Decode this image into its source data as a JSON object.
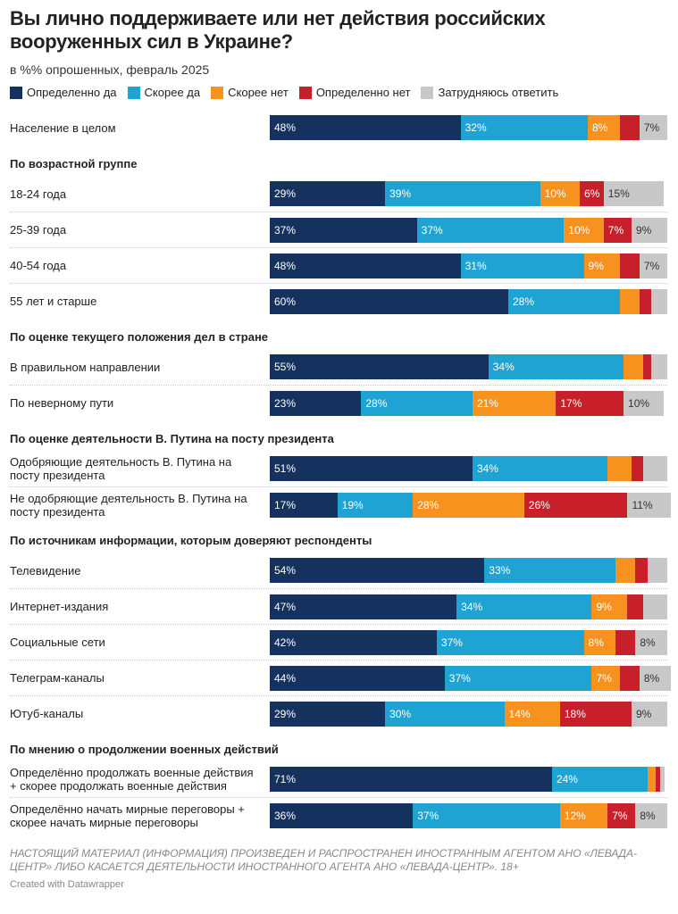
{
  "chart_data": {
    "type": "stacked-bar",
    "title": "Вы лично поддерживаете или нет действия российских вооруженных сил в Украине?",
    "subtitle": "в %% опрошенных, февраль 2025",
    "categories": [
      "Население в целом",
      "По возрастной группе",
      "18-24 года",
      "25-39 года",
      "40-54 года",
      "55 лет и старше",
      "По оценке текущего положения дел в стране",
      "В правильном направлении",
      "По неверному пути",
      "По оценке деятельности В. Путина на посту президента",
      "Одобряющие деятельность В. Путина на посту президента",
      "Не одобряющие деятельность В. Путина на посту президента",
      "По источникам информации, которым доверяют респонденты",
      "Телевидение",
      "Интернет-издания",
      "Социальные сети",
      "Телеграм-каналы",
      "Ютуб-каналы",
      "По мнению о продолжении военных действий",
      "Определённо продолжать военные действия + скорее продолжать военные действия",
      "Определённо начать мирные переговоры + скорее начать мирные переговоры"
    ],
    "xlim": [
      0,
      100
    ],
    "series": [
      {
        "name": "Определенно да",
        "color": "#15325f",
        "values": [
          48,
          null,
          29,
          37,
          48,
          60,
          null,
          55,
          23,
          null,
          51,
          17,
          null,
          54,
          47,
          42,
          44,
          29,
          null,
          71,
          36
        ],
        "value_labels": [
          "48%",
          null,
          "29%",
          "37%",
          "48%",
          "60%",
          null,
          "55%",
          "23%",
          null,
          "51%",
          "17%",
          null,
          "54%",
          "47%",
          "42%",
          "44%",
          "29%",
          null,
          "71%",
          "36%"
        ]
      },
      {
        "name": "Скорее да",
        "color": "#1fa3d3",
        "values": [
          32,
          null,
          39,
          37,
          31,
          28,
          null,
          34,
          28,
          null,
          34,
          19,
          null,
          33,
          34,
          37,
          37,
          30,
          null,
          24,
          37
        ],
        "value_labels": [
          "32%",
          null,
          "39%",
          "37%",
          "31%",
          "28%",
          null,
          "34%",
          "28%",
          null,
          "34%",
          "19%",
          null,
          "33%",
          "34%",
          "37%",
          "37%",
          "30%",
          null,
          "24%",
          "37%"
        ]
      },
      {
        "name": "Скорее нет",
        "color": "#f7921e",
        "values": [
          8,
          null,
          10,
          10,
          9,
          5,
          null,
          5,
          21,
          null,
          6,
          28,
          null,
          5,
          9,
          8,
          7,
          14,
          null,
          2,
          12
        ],
        "value_labels": [
          "8%",
          null,
          "10%",
          "10%",
          "9%",
          null,
          null,
          null,
          "21%",
          null,
          null,
          "28%",
          null,
          null,
          "9%",
          "8%",
          "7%",
          "14%",
          null,
          null,
          "12%"
        ]
      },
      {
        "name": "Определенно нет",
        "color": "#c8202a",
        "values": [
          5,
          null,
          6,
          7,
          5,
          3,
          null,
          2,
          17,
          null,
          3,
          26,
          null,
          3,
          4,
          5,
          5,
          18,
          null,
          1,
          7
        ],
        "value_labels": [
          null,
          null,
          "6%",
          "7%",
          null,
          null,
          null,
          null,
          "17%",
          null,
          null,
          "26%",
          null,
          null,
          null,
          null,
          null,
          "18%",
          null,
          null,
          "7%"
        ]
      },
      {
        "name": "Затрудняюсь ответить",
        "color": "#c8c8c8",
        "values": [
          7,
          null,
          15,
          9,
          7,
          4,
          null,
          4,
          10,
          null,
          6,
          11,
          null,
          5,
          6,
          8,
          8,
          9,
          null,
          1,
          8
        ],
        "value_labels": [
          "7%",
          null,
          "15%",
          "9%",
          "7%",
          null,
          null,
          null,
          "10%",
          null,
          null,
          "11%",
          null,
          null,
          null,
          "8%",
          "8%",
          "9%",
          null,
          null,
          "8%"
        ]
      }
    ],
    "notes": "НАСТОЯЩИЙ МАТЕРИАЛ (ИНФОРМАЦИЯ) ПРОИЗВЕДЕН И РАСПРОСТРАНЕН ИНОСТРАННЫМ АГЕНТОМ АНО «ЛЕВАДА-ЦЕНТР» ЛИБО КАСАЕТСЯ ДЕЯТЕЛЬНОСТИ ИНОСТРАННОГО АГЕНТА АНО «ЛЕВАДА-ЦЕНТР». 18+",
    "credit": "Created with Datawrapper"
  }
}
